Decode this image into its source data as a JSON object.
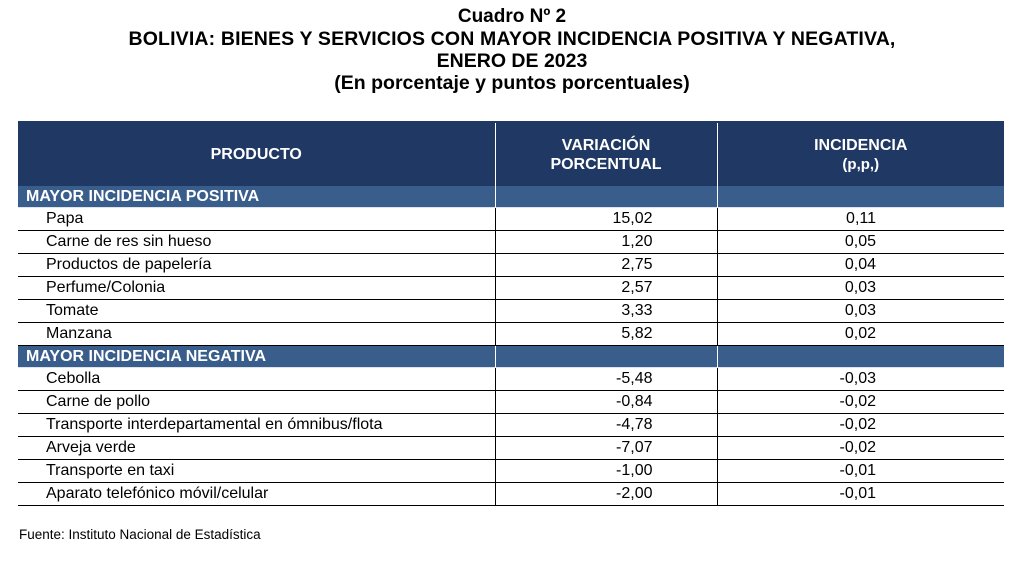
{
  "title": {
    "line1": "Cuadro Nº 2",
    "line2": "BOLIVIA: BIENES Y SERVICIOS CON MAYOR INCIDENCIA POSITIVA Y NEGATIVA,",
    "line3": "ENERO DE 2023",
    "line4": "(En porcentaje y puntos porcentuales)"
  },
  "header": {
    "col1": "PRODUCTO",
    "col2_line1": "VARIACIÓN",
    "col2_line2": "PORCENTUAL",
    "col3_line1": "INCIDENCIA",
    "col3_line2": "(p,p,)"
  },
  "sections": [
    {
      "label": "MAYOR INCIDENCIA POSITIVA",
      "rows": [
        {
          "producto": "Papa",
          "variacion": "15,02",
          "incidencia": "0,11"
        },
        {
          "producto": "Carne de res sin hueso",
          "variacion": "1,20",
          "incidencia": "0,05"
        },
        {
          "producto": "Productos de papelería",
          "variacion": "2,75",
          "incidencia": "0,04"
        },
        {
          "producto": "Perfume/Colonia",
          "variacion": "2,57",
          "incidencia": "0,03"
        },
        {
          "producto": "Tomate",
          "variacion": "3,33",
          "incidencia": "0,03"
        },
        {
          "producto": "Manzana",
          "variacion": "5,82",
          "incidencia": "0,02"
        }
      ]
    },
    {
      "label": "MAYOR INCIDENCIA NEGATIVA",
      "rows": [
        {
          "producto": "Cebolla",
          "variacion": "-5,48",
          "incidencia": "-0,03"
        },
        {
          "producto": "Carne de pollo",
          "variacion": "-0,84",
          "incidencia": "-0,02"
        },
        {
          "producto": "Transporte interdepartamental en ómnibus/flota",
          "variacion": "-4,78",
          "incidencia": "-0,02"
        },
        {
          "producto": "Arveja verde",
          "variacion": "-7,07",
          "incidencia": "-0,02"
        },
        {
          "producto": "Transporte en taxi",
          "variacion": "-1,00",
          "incidencia": "-0,01"
        },
        {
          "producto": "Aparato telefónico móvil/celular",
          "variacion": "-2,00",
          "incidencia": "-0,01"
        }
      ]
    }
  ],
  "footer": {
    "source": "Fuente: Instituto Nacional de Estadística"
  },
  "colors": {
    "header_bg": "#1f3864",
    "section_bg": "#3a5e8c"
  }
}
